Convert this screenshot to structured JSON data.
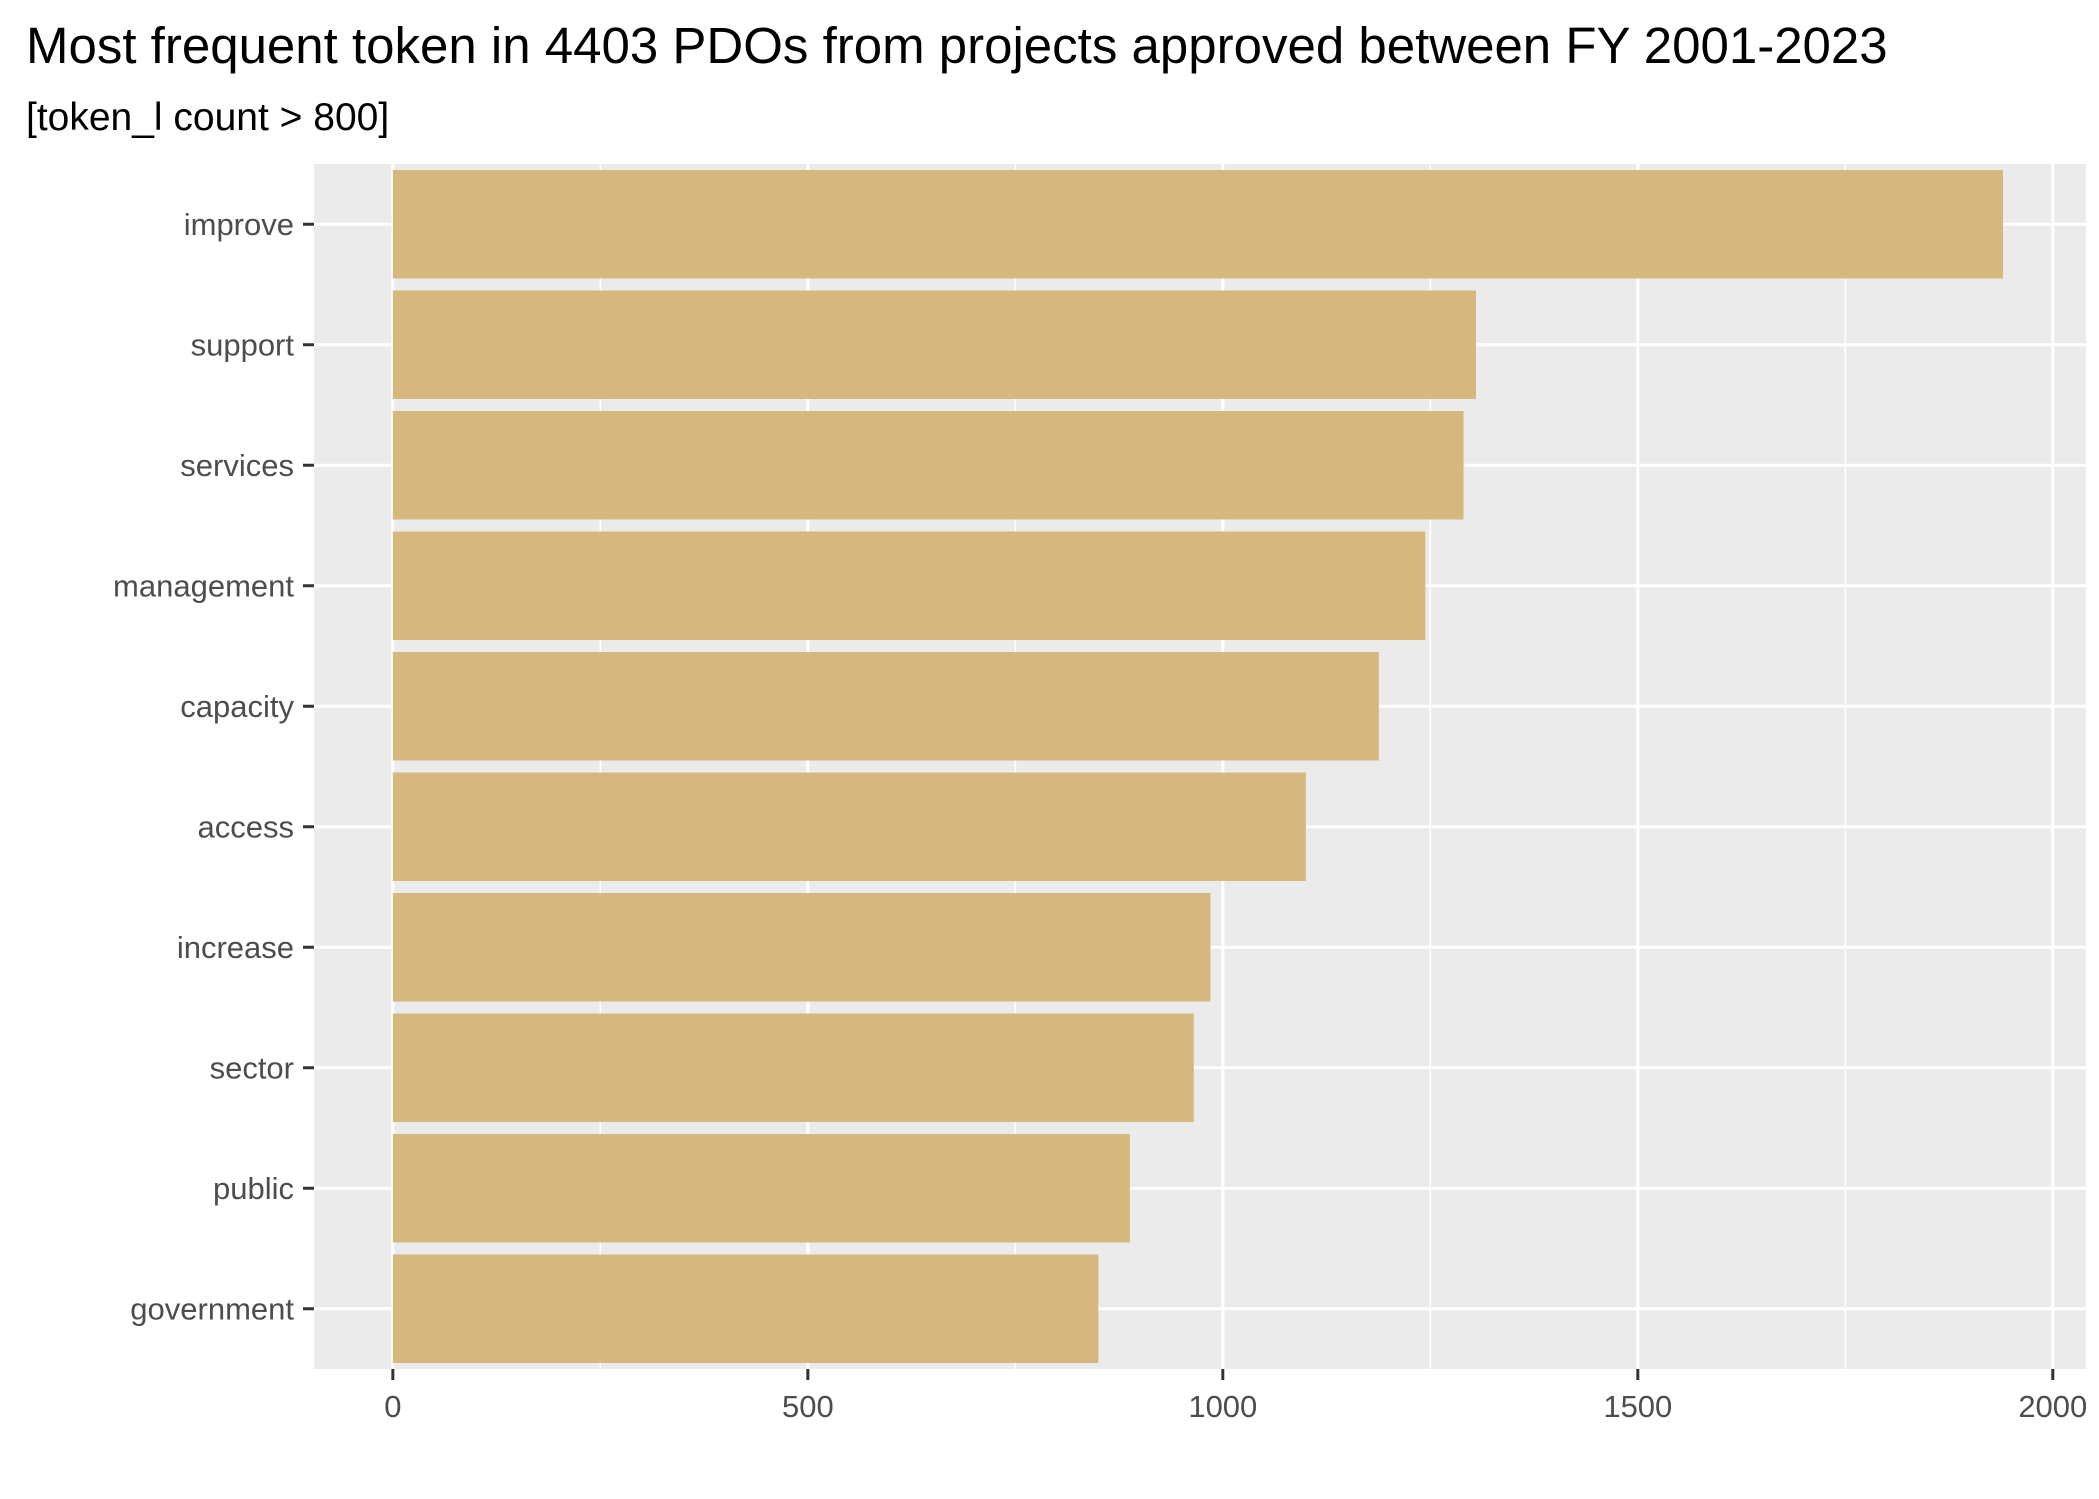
{
  "chart_data": {
    "type": "bar",
    "orientation": "horizontal",
    "title": "Most frequent token in 4403 PDOs from projects approved between FY 2001-2023",
    "subtitle": "[token_l count > 800]",
    "xlabel": "",
    "ylabel": "",
    "categories": [
      "improve",
      "support",
      "services",
      "management",
      "capacity",
      "access",
      "increase",
      "sector",
      "public",
      "government"
    ],
    "values": [
      1940,
      1305,
      1290,
      1244,
      1188,
      1100,
      985,
      965,
      888,
      850
    ],
    "xlim": [
      -95,
      2040
    ],
    "x_ticks": [
      0,
      500,
      1000,
      1500,
      2000
    ],
    "x_tick_labels": [
      "0",
      "500",
      "1000",
      "1500",
      "2000"
    ],
    "grid": true,
    "legend": "none",
    "colors": {
      "bar": "#D6B87E",
      "panel_background": "#EBEBEB",
      "grid": "#FFFFFF",
      "tick_label": "#4D4D4D",
      "tick_mark": "#333333",
      "title": "#000000"
    }
  }
}
